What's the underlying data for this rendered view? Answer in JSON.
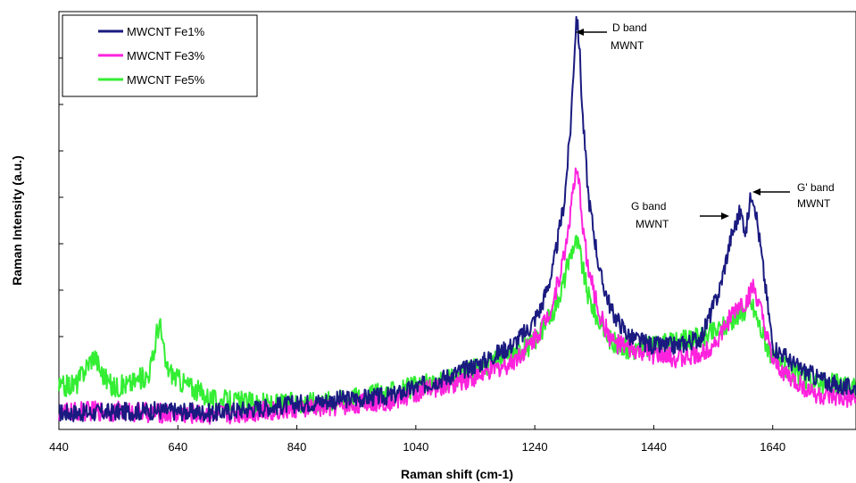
{
  "chart_data": {
    "type": "line",
    "title": "",
    "xlabel": "Raman shift (cm-1)",
    "ylabel": "Raman Intensity (a.u.)",
    "xlim": [
      440,
      1780
    ],
    "ylim": [
      0,
      1
    ],
    "x_ticks": [
      440,
      640,
      840,
      1040,
      1240,
      1440,
      1640
    ],
    "x_tick_labels": [
      "440",
      "640",
      "840",
      "1040",
      "1240",
      "1440",
      "1640"
    ],
    "y_tick_count": 8,
    "grid": false,
    "legend": "top-left",
    "series": [
      {
        "name": "MWCNT Fe1%",
        "color": "#1a1a80",
        "x": [
          440,
          500,
          600,
          700,
          800,
          900,
          1000,
          1100,
          1150,
          1200,
          1230,
          1250,
          1270,
          1290,
          1300,
          1305,
          1310,
          1315,
          1320,
          1330,
          1350,
          1370,
          1400,
          1440,
          1480,
          1520,
          1550,
          1570,
          1585,
          1590,
          1595,
          1600,
          1605,
          1610,
          1620,
          1640,
          1680,
          1720,
          1760,
          1780
        ],
        "y": [
          0.04,
          0.04,
          0.045,
          0.04,
          0.055,
          0.07,
          0.08,
          0.13,
          0.16,
          0.2,
          0.24,
          0.29,
          0.38,
          0.55,
          0.72,
          0.86,
          0.99,
          0.92,
          0.76,
          0.56,
          0.37,
          0.28,
          0.22,
          0.2,
          0.2,
          0.22,
          0.33,
          0.46,
          0.52,
          0.5,
          0.47,
          0.53,
          0.57,
          0.54,
          0.43,
          0.2,
          0.15,
          0.12,
          0.1,
          0.1
        ]
      },
      {
        "name": "MWCNT Fe3%",
        "color": "#ff22dd",
        "x": [
          440,
          500,
          600,
          700,
          800,
          900,
          1000,
          1100,
          1150,
          1200,
          1230,
          1250,
          1270,
          1290,
          1300,
          1305,
          1310,
          1315,
          1320,
          1330,
          1350,
          1370,
          1400,
          1440,
          1480,
          1520,
          1550,
          1570,
          1585,
          1590,
          1595,
          1600,
          1605,
          1610,
          1620,
          1640,
          1680,
          1720,
          1760,
          1780
        ],
        "y": [
          0.04,
          0.045,
          0.04,
          0.035,
          0.045,
          0.055,
          0.07,
          0.11,
          0.13,
          0.16,
          0.2,
          0.24,
          0.3,
          0.42,
          0.52,
          0.58,
          0.61,
          0.58,
          0.5,
          0.38,
          0.27,
          0.21,
          0.19,
          0.18,
          0.17,
          0.18,
          0.22,
          0.27,
          0.3,
          0.3,
          0.3,
          0.32,
          0.34,
          0.33,
          0.28,
          0.16,
          0.11,
          0.08,
          0.07,
          0.07
        ]
      },
      {
        "name": "MWCNT Fe5%",
        "color": "#33ee33",
        "x": [
          440,
          470,
          490,
          500,
          510,
          530,
          560,
          590,
          600,
          605,
          610,
          620,
          640,
          700,
          800,
          900,
          1000,
          1100,
          1150,
          1200,
          1230,
          1250,
          1270,
          1290,
          1300,
          1305,
          1310,
          1315,
          1320,
          1330,
          1350,
          1370,
          1400,
          1440,
          1480,
          1520,
          1550,
          1570,
          1590,
          1600,
          1605,
          1610,
          1620,
          1640,
          1680,
          1720,
          1760,
          1780
        ],
        "y": [
          0.1,
          0.11,
          0.16,
          0.18,
          0.14,
          0.1,
          0.11,
          0.13,
          0.18,
          0.24,
          0.25,
          0.15,
          0.12,
          0.07,
          0.06,
          0.07,
          0.09,
          0.12,
          0.15,
          0.18,
          0.2,
          0.23,
          0.28,
          0.36,
          0.42,
          0.44,
          0.45,
          0.43,
          0.39,
          0.32,
          0.25,
          0.21,
          0.19,
          0.2,
          0.21,
          0.22,
          0.24,
          0.26,
          0.28,
          0.3,
          0.3,
          0.28,
          0.24,
          0.17,
          0.13,
          0.11,
          0.11,
          0.1
        ]
      }
    ],
    "annotations": [
      {
        "line1": "D band",
        "line2": "MWNT",
        "x": 1310,
        "y": 0.99
      },
      {
        "line1": "G band",
        "line2": "MWNT",
        "x": 1587,
        "y": 0.5
      },
      {
        "line1": "G' band",
        "line2": "MWNT",
        "x": 1610,
        "y": 0.57
      }
    ]
  }
}
